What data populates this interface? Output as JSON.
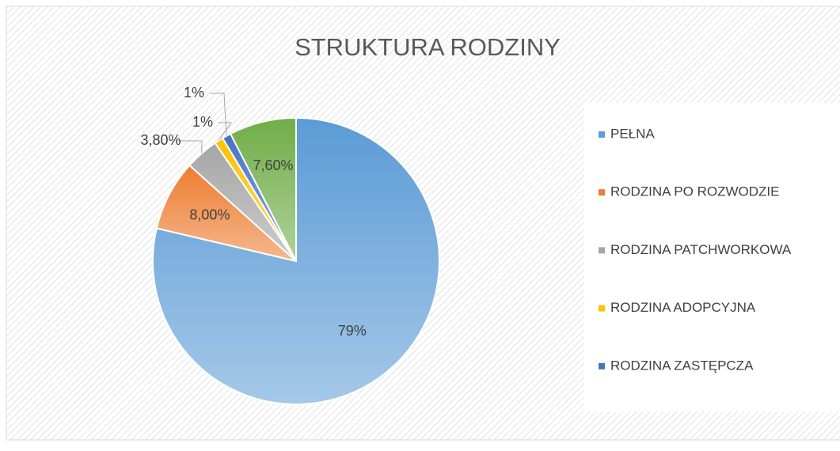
{
  "chart_data": {
    "type": "pie",
    "title": "STRUKTURA RODZINY",
    "categories": [
      "PEŁNA",
      "RODZINA PO ROZWODZIE",
      "RODZINA PATCHWORKOWA",
      "RODZINA ADOPCYJNA",
      "RODZINA ZASTĘPCZA",
      null
    ],
    "values": [
      79,
      8,
      3.8,
      1,
      1,
      7.6
    ],
    "value_labels": [
      "79%",
      "8,00%",
      "3,80%",
      "1%",
      "1%",
      "7,60%"
    ],
    "colors": [
      "#5b9bd5",
      "#ed7d31",
      "#a5a5a5",
      "#ffc000",
      "#4472c4",
      "#70ad47"
    ],
    "legend": "right"
  }
}
